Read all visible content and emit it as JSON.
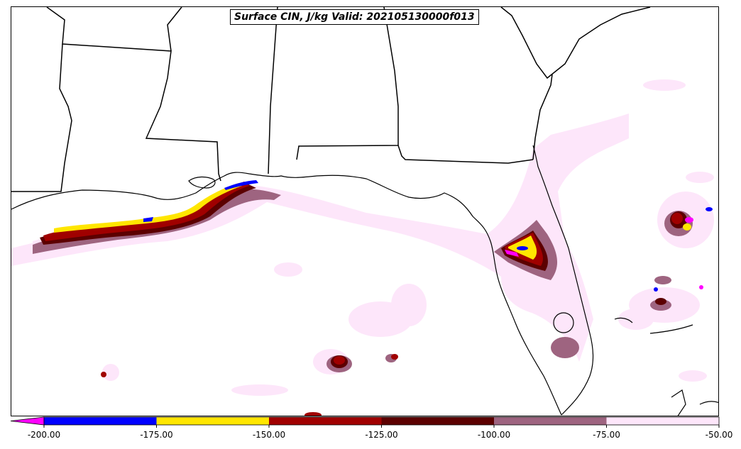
{
  "title": "Surface CIN, J/kg Valid: 202105130000f013",
  "colorbar": {
    "ticks": [
      "-200.00",
      "-175.00",
      "-150.00",
      "-125.00",
      "-100.00",
      "-75.00",
      "-50.00"
    ],
    "extend_color": "#ff00ff",
    "bins": [
      {
        "from": -200,
        "to": -175,
        "color": "#0000ff"
      },
      {
        "from": -175,
        "to": -150,
        "color": "#ffe600"
      },
      {
        "from": -150,
        "to": -125,
        "color": "#a00000"
      },
      {
        "from": -125,
        "to": -100,
        "color": "#5c0000"
      },
      {
        "from": -100,
        "to": -75,
        "color": "#9e6480"
      },
      {
        "from": -75,
        "to": -50,
        "color": "#fde6fa"
      }
    ]
  },
  "colors": {
    "outline": "#000000",
    "light_pink": "#fde6fa",
    "mauve": "#9e6480",
    "dark_red": "#5c0000",
    "red": "#a00000",
    "yellow": "#ffe600",
    "blue": "#0000ff",
    "magenta": "#ff00ff"
  }
}
